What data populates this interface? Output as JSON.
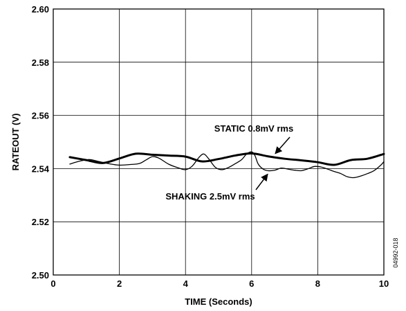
{
  "chart_data": {
    "type": "line",
    "xlabel": "TIME (Seconds)",
    "ylabel": "RATEOUT (V)",
    "xlim": [
      0,
      10
    ],
    "ylim": [
      2.5,
      2.6
    ],
    "x_ticks": [
      0,
      2,
      4,
      6,
      8,
      10
    ],
    "y_ticks": [
      2.5,
      2.52,
      2.54,
      2.56,
      2.58,
      2.6
    ],
    "x_tick_labels": [
      "0",
      "2",
      "4",
      "6",
      "8",
      "10"
    ],
    "y_tick_labels": [
      "2.50",
      "2.52",
      "2.54",
      "2.56",
      "2.58",
      "2.60"
    ],
    "grid": true,
    "legend": "none",
    "figure_id": "04992-018",
    "series": [
      {
        "label": "STATIC 0.8mV rms",
        "style": "thick",
        "x": [
          0.5,
          1.0,
          1.5,
          2.0,
          2.5,
          3.0,
          3.5,
          4.0,
          4.5,
          5.0,
          5.5,
          6.0,
          6.5,
          7.0,
          7.5,
          8.0,
          8.5,
          9.0,
          9.5,
          10.0
        ],
        "y": [
          2.5443,
          2.5432,
          2.5421,
          2.5438,
          2.5456,
          2.5452,
          2.5449,
          2.5445,
          2.5427,
          2.5436,
          2.5449,
          2.5457,
          2.5446,
          2.5437,
          2.5431,
          2.5424,
          2.5414,
          2.5432,
          2.5437,
          2.5455
        ]
      },
      {
        "label": "SHAKING 2.5mV rms",
        "style": "thin",
        "x": [
          0.5,
          0.8,
          1.1,
          1.4,
          1.7,
          2.0,
          2.3,
          2.6,
          2.8,
          3.0,
          3.2,
          3.5,
          3.8,
          4.0,
          4.2,
          4.4,
          4.55,
          4.7,
          4.9,
          5.1,
          5.3,
          5.5,
          5.7,
          5.85,
          6.0,
          6.1,
          6.2,
          6.35,
          6.5,
          6.7,
          6.9,
          7.1,
          7.3,
          7.5,
          7.7,
          7.9,
          8.1,
          8.3,
          8.5,
          8.7,
          8.9,
          9.1,
          9.3,
          9.5,
          9.7,
          9.9,
          10.0
        ],
        "y": [
          2.5417,
          2.5428,
          2.5434,
          2.5426,
          2.5418,
          2.5413,
          2.5415,
          2.5419,
          2.5432,
          2.5445,
          2.5439,
          2.5416,
          2.5402,
          2.5396,
          2.5409,
          2.5441,
          2.5455,
          2.5437,
          2.5405,
          2.5396,
          2.5404,
          2.5418,
          2.5434,
          2.5455,
          2.5463,
          2.5449,
          2.5417,
          2.5398,
          2.5392,
          2.5394,
          2.5402,
          2.5398,
          2.5394,
          2.5392,
          2.5399,
          2.5408,
          2.5406,
          2.5398,
          2.5389,
          2.5381,
          2.5369,
          2.5366,
          2.5372,
          2.5381,
          2.5392,
          2.5412,
          2.5426
        ]
      }
    ],
    "annotations": [
      {
        "text": "STATIC 0.8mV rms",
        "points_to_series": 0,
        "arrow_target": {
          "x": 6.8,
          "y": 2.5446
        }
      },
      {
        "text": "SHAKING 2.5mV rms",
        "points_to_series": 1,
        "arrow_target": {
          "x": 6.0,
          "y": 2.5405
        }
      }
    ]
  }
}
